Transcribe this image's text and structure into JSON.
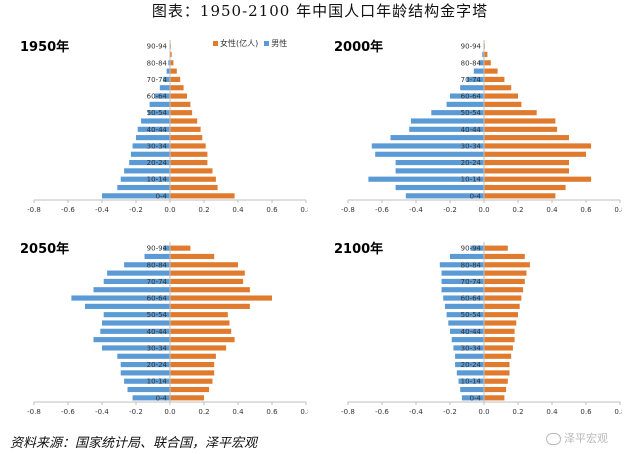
{
  "title": "图表：1950-2100 年中国人口年龄结构金字塔",
  "source": "资料来源：国家统计局、联合国，泽平宏观",
  "watermark": "泽平宏观",
  "legend": {
    "female": "女性(亿人)",
    "male": "男性"
  },
  "colors": {
    "female": "#E07B2E",
    "male": "#5B9BD5"
  },
  "chart_data": [
    {
      "type": "bar",
      "panel_title": "1950年",
      "categories": [
        "0-4",
        "5-9",
        "10-14",
        "15-19",
        "20-24",
        "25-29",
        "30-34",
        "35-39",
        "40-44",
        "45-49",
        "50-54",
        "55-59",
        "60-64",
        "65-69",
        "70-74",
        "75-79",
        "80-84",
        "85-89",
        "90-94"
      ],
      "tick_labels_shown": [
        "0-4",
        "10-14",
        "20-24",
        "30-34",
        "40-44",
        "50-54",
        "60-64",
        "70-74",
        "80-84",
        "90-94"
      ],
      "series": [
        {
          "name": "女性(亿人)",
          "values": [
            0.38,
            0.28,
            0.27,
            0.25,
            0.22,
            0.22,
            0.21,
            0.19,
            0.18,
            0.16,
            0.13,
            0.12,
            0.1,
            0.08,
            0.06,
            0.04,
            0.02,
            0.01,
            0.005
          ]
        },
        {
          "name": "男性",
          "values": [
            -0.4,
            -0.31,
            -0.29,
            -0.27,
            -0.24,
            -0.23,
            -0.22,
            -0.2,
            -0.19,
            -0.17,
            -0.13,
            -0.12,
            -0.09,
            -0.06,
            -0.04,
            -0.02,
            -0.01,
            -0.003,
            -0.001
          ]
        }
      ],
      "xlim": [
        -0.8,
        0.8
      ],
      "xticks": [
        "-0.8",
        "-0.6",
        "-0.4",
        "-0.2",
        "0.0",
        "0.2",
        "0.4",
        "0.6",
        "0.8"
      ]
    },
    {
      "type": "bar",
      "panel_title": "2000年",
      "categories": [
        "0-4",
        "5-9",
        "10-14",
        "15-19",
        "20-24",
        "25-29",
        "30-34",
        "35-39",
        "40-44",
        "45-49",
        "50-54",
        "55-59",
        "60-64",
        "65-69",
        "70-74",
        "75-79",
        "80-84",
        "85-89",
        "90-94"
      ],
      "tick_labels_shown": [
        "0-4",
        "10-14",
        "20-24",
        "30-34",
        "40-44",
        "50-54",
        "60-64",
        "70-74",
        "80-84",
        "90-94"
      ],
      "series": [
        {
          "name": "女性(亿人)",
          "values": [
            0.42,
            0.48,
            0.63,
            0.5,
            0.5,
            0.6,
            0.63,
            0.5,
            0.43,
            0.42,
            0.31,
            0.22,
            0.2,
            0.16,
            0.12,
            0.08,
            0.04,
            0.02,
            0.005
          ]
        },
        {
          "name": "男性",
          "values": [
            -0.46,
            -0.52,
            -0.68,
            -0.52,
            -0.52,
            -0.64,
            -0.66,
            -0.55,
            -0.44,
            -0.43,
            -0.31,
            -0.22,
            -0.2,
            -0.14,
            -0.1,
            -0.06,
            -0.03,
            -0.01,
            -0.002
          ]
        }
      ],
      "xlim": [
        -0.8,
        0.8
      ],
      "xticks": [
        "-0.8",
        "-0.6",
        "-0.4",
        "-0.2",
        "0.0",
        "0.2",
        "0.4",
        "0.6",
        "0.8"
      ]
    },
    {
      "type": "bar",
      "panel_title": "2050年",
      "categories": [
        "0-4",
        "5-9",
        "10-14",
        "15-19",
        "20-24",
        "25-29",
        "30-34",
        "35-39",
        "40-44",
        "45-49",
        "50-54",
        "55-59",
        "60-64",
        "65-69",
        "70-74",
        "75-79",
        "80-84",
        "85-89",
        "90-94"
      ],
      "tick_labels_shown": [
        "0-4",
        "10-14",
        "20-24",
        "30-34",
        "40-44",
        "50-54",
        "60-64",
        "70-74",
        "80-84",
        "90-94"
      ],
      "series": [
        {
          "name": "女性(亿人)",
          "values": [
            0.2,
            0.23,
            0.25,
            0.26,
            0.26,
            0.27,
            0.33,
            0.38,
            0.36,
            0.35,
            0.34,
            0.47,
            0.6,
            0.47,
            0.43,
            0.44,
            0.4,
            0.26,
            0.12
          ]
        },
        {
          "name": "男性",
          "values": [
            -0.22,
            -0.25,
            -0.27,
            -0.29,
            -0.29,
            -0.31,
            -0.4,
            -0.45,
            -0.41,
            -0.4,
            -0.39,
            -0.5,
            -0.58,
            -0.45,
            -0.39,
            -0.37,
            -0.27,
            -0.15,
            -0.04
          ]
        }
      ],
      "xlim": [
        -0.8,
        0.8
      ],
      "xticks": [
        "-0.8",
        "-0.6",
        "-0.4",
        "-0.2",
        "0.0",
        "0.2",
        "0.4",
        "0.6",
        "0.8"
      ]
    },
    {
      "type": "bar",
      "panel_title": "2100年",
      "categories": [
        "0-4",
        "5-9",
        "10-14",
        "15-19",
        "20-24",
        "25-29",
        "30-34",
        "35-39",
        "40-44",
        "45-49",
        "50-54",
        "55-59",
        "60-64",
        "65-69",
        "70-74",
        "75-79",
        "80-84",
        "85-89",
        "90-94"
      ],
      "tick_labels_shown": [
        "0-4",
        "10-14",
        "20-24",
        "30-34",
        "40-44",
        "50-54",
        "60-64",
        "70-74",
        "80-84",
        "90-94"
      ],
      "series": [
        {
          "name": "女性(亿人)",
          "values": [
            0.12,
            0.13,
            0.14,
            0.15,
            0.15,
            0.16,
            0.17,
            0.18,
            0.18,
            0.19,
            0.2,
            0.21,
            0.22,
            0.23,
            0.24,
            0.25,
            0.27,
            0.24,
            0.14
          ]
        },
        {
          "name": "男性",
          "values": [
            -0.13,
            -0.14,
            -0.15,
            -0.16,
            -0.17,
            -0.17,
            -0.18,
            -0.19,
            -0.2,
            -0.21,
            -0.22,
            -0.23,
            -0.24,
            -0.25,
            -0.25,
            -0.25,
            -0.26,
            -0.2,
            -0.08
          ]
        }
      ],
      "xlim": [
        -0.8,
        0.8
      ],
      "xticks": [
        "-0.8",
        "-0.6",
        "-0.4",
        "-0.2",
        "0.0",
        "0.2",
        "0.4",
        "0.6",
        "0.8"
      ]
    }
  ]
}
